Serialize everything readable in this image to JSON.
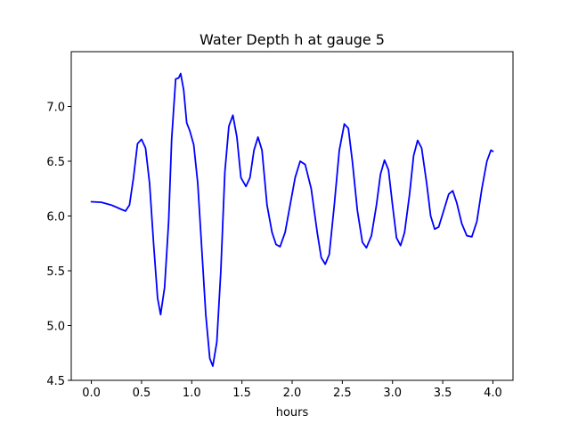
{
  "chart_data": {
    "type": "line",
    "title": "Water Depth h at gauge 5",
    "xlabel": "hours",
    "ylabel": "",
    "xlim": [
      -0.2,
      4.2
    ],
    "ylim": [
      4.5,
      7.5
    ],
    "xticks": [
      0.0,
      0.5,
      1.0,
      1.5,
      2.0,
      2.5,
      3.0,
      3.5,
      4.0
    ],
    "yticks": [
      4.5,
      5.0,
      5.5,
      6.0,
      6.5,
      7.0
    ],
    "xtick_labels": [
      "0.0",
      "0.5",
      "1.0",
      "1.5",
      "2.0",
      "2.5",
      "3.0",
      "3.5",
      "4.0"
    ],
    "ytick_labels": [
      "4.5",
      "5.0",
      "5.5",
      "6.0",
      "6.5",
      "7.0"
    ],
    "grid": false,
    "series": [
      {
        "color": "#0000ff",
        "points": [
          [
            0.0,
            6.13
          ],
          [
            0.1,
            6.125
          ],
          [
            0.2,
            6.1
          ],
          [
            0.3,
            6.06
          ],
          [
            0.34,
            6.045
          ],
          [
            0.38,
            6.1
          ],
          [
            0.42,
            6.35
          ],
          [
            0.46,
            6.66
          ],
          [
            0.5,
            6.7
          ],
          [
            0.54,
            6.62
          ],
          [
            0.58,
            6.3
          ],
          [
            0.62,
            5.75
          ],
          [
            0.66,
            5.25
          ],
          [
            0.69,
            5.1
          ],
          [
            0.73,
            5.35
          ],
          [
            0.77,
            5.95
          ],
          [
            0.8,
            6.7
          ],
          [
            0.84,
            7.25
          ],
          [
            0.87,
            7.26
          ],
          [
            0.89,
            7.3
          ],
          [
            0.92,
            7.15
          ],
          [
            0.95,
            6.85
          ],
          [
            0.98,
            6.78
          ],
          [
            1.02,
            6.65
          ],
          [
            1.06,
            6.3
          ],
          [
            1.1,
            5.7
          ],
          [
            1.14,
            5.1
          ],
          [
            1.18,
            4.7
          ],
          [
            1.21,
            4.63
          ],
          [
            1.25,
            4.85
          ],
          [
            1.29,
            5.5
          ],
          [
            1.33,
            6.4
          ],
          [
            1.37,
            6.82
          ],
          [
            1.41,
            6.92
          ],
          [
            1.45,
            6.72
          ],
          [
            1.49,
            6.35
          ],
          [
            1.54,
            6.27
          ],
          [
            1.58,
            6.35
          ],
          [
            1.62,
            6.6
          ],
          [
            1.66,
            6.72
          ],
          [
            1.7,
            6.6
          ],
          [
            1.75,
            6.1
          ],
          [
            1.8,
            5.85
          ],
          [
            1.84,
            5.74
          ],
          [
            1.88,
            5.72
          ],
          [
            1.93,
            5.85
          ],
          [
            1.98,
            6.1
          ],
          [
            2.03,
            6.35
          ],
          [
            2.08,
            6.5
          ],
          [
            2.13,
            6.47
          ],
          [
            2.19,
            6.25
          ],
          [
            2.25,
            5.85
          ],
          [
            2.29,
            5.62
          ],
          [
            2.33,
            5.56
          ],
          [
            2.37,
            5.65
          ],
          [
            2.42,
            6.1
          ],
          [
            2.47,
            6.6
          ],
          [
            2.52,
            6.84
          ],
          [
            2.56,
            6.8
          ],
          [
            2.6,
            6.5
          ],
          [
            2.65,
            6.05
          ],
          [
            2.7,
            5.76
          ],
          [
            2.74,
            5.71
          ],
          [
            2.79,
            5.82
          ],
          [
            2.84,
            6.1
          ],
          [
            2.88,
            6.38
          ],
          [
            2.92,
            6.51
          ],
          [
            2.96,
            6.42
          ],
          [
            3.0,
            6.1
          ],
          [
            3.04,
            5.8
          ],
          [
            3.08,
            5.73
          ],
          [
            3.12,
            5.85
          ],
          [
            3.17,
            6.2
          ],
          [
            3.21,
            6.55
          ],
          [
            3.25,
            6.69
          ],
          [
            3.29,
            6.62
          ],
          [
            3.34,
            6.3
          ],
          [
            3.38,
            6.0
          ],
          [
            3.42,
            5.88
          ],
          [
            3.46,
            5.9
          ],
          [
            3.51,
            6.05
          ],
          [
            3.56,
            6.2
          ],
          [
            3.6,
            6.23
          ],
          [
            3.64,
            6.12
          ],
          [
            3.69,
            5.93
          ],
          [
            3.74,
            5.82
          ],
          [
            3.79,
            5.81
          ],
          [
            3.84,
            5.95
          ],
          [
            3.89,
            6.25
          ],
          [
            3.94,
            6.5
          ],
          [
            3.98,
            6.6
          ],
          [
            4.0,
            6.59
          ]
        ]
      }
    ]
  }
}
